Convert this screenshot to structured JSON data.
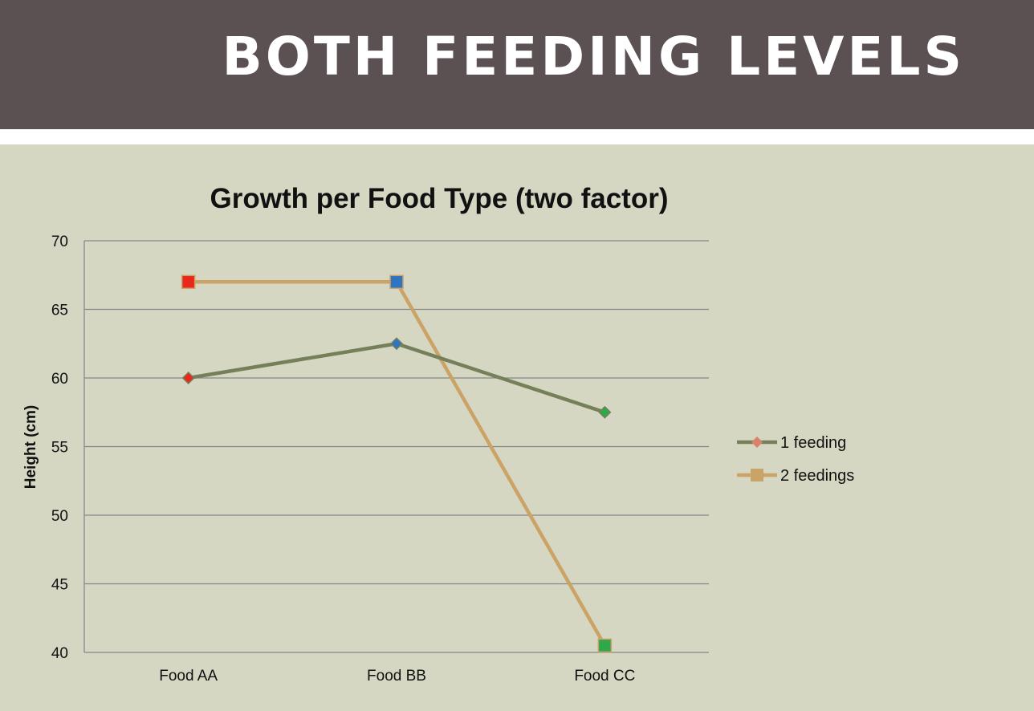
{
  "slide": {
    "title": "BOTH FEEDING LEVELS"
  },
  "colors": {
    "title_bar": "#5b5153",
    "background": "#d5d7c3",
    "series_1": "#75805a",
    "series_2": "#cba366",
    "marker_red": "#e8281c",
    "marker_blue": "#2f74c0",
    "marker_green": "#2ea84a"
  },
  "chart_data": {
    "type": "line",
    "title": "Growth per Food Type (two factor)",
    "xlabel": "",
    "ylabel": "Height (cm)",
    "categories": [
      "Food AA",
      "Food BB",
      "Food CC"
    ],
    "ylim": [
      40,
      70
    ],
    "yticks": [
      40,
      45,
      50,
      55,
      60,
      65,
      70
    ],
    "grid": true,
    "legend_position": "right",
    "series": [
      {
        "name": "1 feeding",
        "values": [
          60,
          62.5,
          57.5
        ],
        "marker": "diamond",
        "color": "#75805a",
        "marker_colors": [
          "#e8281c",
          "#2f74c0",
          "#2ea84a"
        ]
      },
      {
        "name": "2 feedings",
        "values": [
          67,
          67,
          40.5
        ],
        "marker": "square",
        "color": "#cba366",
        "marker_colors": [
          "#e8281c",
          "#2f74c0",
          "#2ea84a"
        ]
      }
    ]
  }
}
